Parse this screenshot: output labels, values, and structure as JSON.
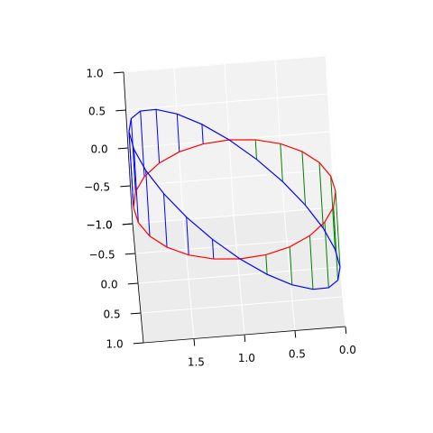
{
  "chart_data": {
    "type": "line3d",
    "xlim": [
      0,
      2
    ],
    "ylim": [
      -1,
      1
    ],
    "zlim": [
      -1,
      1
    ],
    "xticks": [
      {
        "value": 0,
        "label": "0.0"
      },
      {
        "value": 0.5,
        "label": "0.5"
      },
      {
        "value": 1,
        "label": "1.0"
      },
      {
        "value": 1.5,
        "label": "1.5"
      }
    ],
    "yticks": [
      {
        "value": -1,
        "label": "−1.0"
      },
      {
        "value": -0.5,
        "label": "−0.5"
      },
      {
        "value": 0,
        "label": "0.0"
      },
      {
        "value": 0.5,
        "label": "0.5"
      },
      {
        "value": 1,
        "label": "1.0"
      }
    ],
    "zticks": [
      {
        "value": -1,
        "label": "−1.0"
      },
      {
        "value": -0.5,
        "label": "−0.5"
      },
      {
        "value": 0,
        "label": "0.0"
      },
      {
        "value": 0.5,
        "label": "0.5"
      },
      {
        "value": 1,
        "label": "1.0"
      }
    ],
    "grid": true,
    "stem_colors": {
      "positive": "#0000ff",
      "negative": "#008000"
    },
    "series": [
      {
        "color": "#ff0000",
        "x": [
          2,
          1.966,
          1.866,
          1.707,
          1.5,
          1.259,
          1,
          0.741,
          0.5,
          0.293,
          0.134,
          0.034,
          0,
          0.034,
          0.134,
          0.293,
          0.5,
          0.741,
          1,
          1.259,
          1.5,
          1.707,
          1.866,
          1.966,
          2
        ],
        "y": [
          0,
          0.259,
          0.5,
          0.707,
          0.866,
          0.966,
          1,
          0.966,
          0.866,
          0.707,
          0.5,
          0.259,
          0,
          -0.259,
          -0.5,
          -0.707,
          -0.866,
          -0.966,
          -1,
          -0.966,
          -0.866,
          -0.707,
          -0.5,
          -0.259,
          0
        ],
        "z": [
          0,
          0,
          0,
          0,
          0,
          0,
          0,
          0,
          0,
          0,
          0,
          0,
          0,
          0,
          0,
          0,
          0,
          0,
          0,
          0,
          0,
          0,
          0,
          0,
          0
        ]
      },
      {
        "color": "#0000ff",
        "x": [
          2,
          1.966,
          1.866,
          1.707,
          1.5,
          1.259,
          1,
          0.741,
          0.5,
          0.293,
          0.134,
          0.034,
          0,
          0.034,
          0.134,
          0.293,
          0.5,
          0.741,
          1,
          1.259,
          1.5,
          1.707,
          1.866,
          1.966,
          2
        ],
        "y": [
          0,
          0.259,
          0.5,
          0.707,
          0.866,
          0.966,
          1,
          0.966,
          0.866,
          0.707,
          0.5,
          0.259,
          0,
          -0.259,
          -0.5,
          -0.707,
          -0.866,
          -0.966,
          -1,
          -0.966,
          -0.866,
          -0.707,
          -0.5,
          -0.259,
          0
        ],
        "z": [
          1,
          0.966,
          0.866,
          0.707,
          0.5,
          0.259,
          0,
          -0.259,
          -0.5,
          -0.707,
          -0.866,
          -0.966,
          -1,
          -0.966,
          -0.866,
          -0.707,
          -0.5,
          -0.259,
          0,
          0.259,
          0.5,
          0.707,
          0.866,
          0.966,
          1
        ]
      }
    ]
  }
}
